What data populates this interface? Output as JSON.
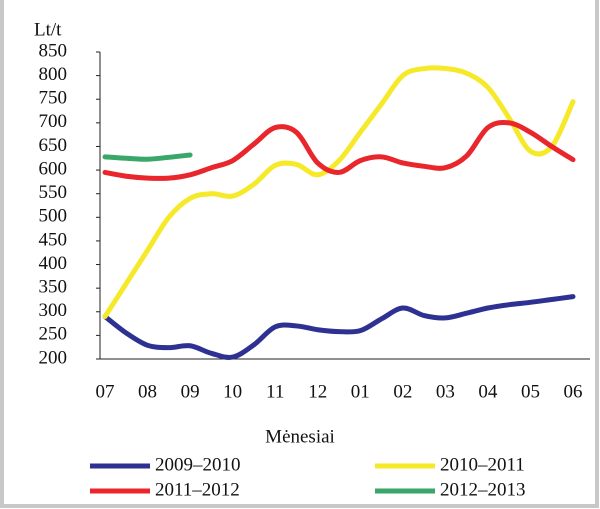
{
  "chart_data": {
    "type": "line",
    "y_label": "Lt/t",
    "x_label": "Mėnesiai",
    "categories": [
      "07",
      null,
      "08",
      null,
      "09",
      null,
      "10",
      null,
      "11",
      null,
      "12",
      null,
      "01",
      null,
      "02",
      null,
      "03",
      null,
      "04",
      null,
      "05",
      null,
      "06"
    ],
    "series": [
      {
        "name": "2009–2010",
        "color": "#2e3192",
        "values": [
          290,
          255,
          229,
          224,
          228,
          212,
          204,
          230,
          268,
          270,
          262,
          258,
          260,
          285,
          308,
          292,
          287,
          297,
          308,
          315,
          320,
          326,
          332
        ]
      },
      {
        "name": "2010–2011",
        "color": "#f5e92a",
        "values": [
          290,
          360,
          430,
          500,
          540,
          550,
          545,
          570,
          610,
          612,
          590,
          620,
          680,
          740,
          800,
          815,
          815,
          805,
          775,
          710,
          640,
          650,
          745
        ]
      },
      {
        "name": "2011–2012",
        "color": "#e8262b",
        "values": [
          595,
          587,
          583,
          583,
          590,
          605,
          620,
          655,
          690,
          680,
          615,
          595,
          620,
          628,
          615,
          608,
          605,
          630,
          690,
          700,
          680,
          650,
          622
        ]
      },
      {
        "name": "2012–2013",
        "color": "#3aa66a",
        "values": [
          628,
          625,
          623,
          627,
          632,
          null,
          null,
          null,
          null,
          null,
          null,
          null,
          null,
          null,
          null,
          null,
          null,
          null,
          null,
          null,
          null,
          null,
          null
        ]
      }
    ],
    "ylim": [
      200,
      850
    ],
    "yticks": [
      200,
      250,
      300,
      350,
      400,
      450,
      500,
      550,
      600,
      650,
      700,
      750,
      800,
      850
    ],
    "grid": false
  }
}
